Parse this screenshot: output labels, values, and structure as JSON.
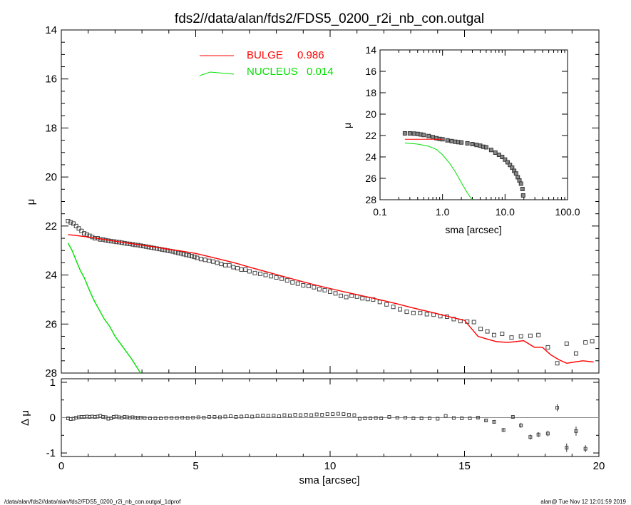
{
  "chart_data": [
    {
      "type": "scatter",
      "title": "fds2//data/alan/fds2/FDS5_0200_r2i_nb_con.outgal",
      "xlabel": "",
      "ylabel": "μ",
      "xlim": [
        0,
        20
      ],
      "ylim": [
        28,
        14
      ],
      "y_inverted": true,
      "y_ticks": [
        "14",
        "16",
        "18",
        "20",
        "22",
        "24",
        "26",
        "28"
      ],
      "legend": [
        {
          "label": "BULGE",
          "value": "0.986",
          "color": "#ff0000"
        },
        {
          "label": "NUCLEUS",
          "value": "0.014",
          "color": "#00e000"
        }
      ],
      "series": [
        {
          "name": "data",
          "marker": "square",
          "color": "#444444",
          "x": [
            0.25,
            0.35,
            0.45,
            0.55,
            0.65,
            0.75,
            0.85,
            0.95,
            1.05,
            1.15,
            1.25,
            1.35,
            1.45,
            1.55,
            1.65,
            1.75,
            1.85,
            1.95,
            2.05,
            2.15,
            2.25,
            2.35,
            2.45,
            2.55,
            2.65,
            2.75,
            2.85,
            2.95,
            3.05,
            3.15,
            3.25,
            3.35,
            3.45,
            3.55,
            3.65,
            3.75,
            3.85,
            3.95,
            4.05,
            4.15,
            4.25,
            4.35,
            4.45,
            4.55,
            4.65,
            4.75,
            4.85,
            4.95,
            5.05,
            5.2,
            5.35,
            5.5,
            5.65,
            5.8,
            5.95,
            6.1,
            6.25,
            6.4,
            6.55,
            6.7,
            6.85,
            7.0,
            7.2,
            7.4,
            7.6,
            7.8,
            8.0,
            8.2,
            8.4,
            8.6,
            8.8,
            9.0,
            9.2,
            9.4,
            9.6,
            9.8,
            10.0,
            10.2,
            10.4,
            10.6,
            10.8,
            11.0,
            11.2,
            11.4,
            11.6,
            11.85,
            12.1,
            12.35,
            12.6,
            12.85,
            13.1,
            13.35,
            13.6,
            13.85,
            14.1,
            14.35,
            14.6,
            14.85,
            15.1,
            15.35,
            15.6,
            15.85,
            16.1,
            16.4,
            16.75,
            17.1,
            17.45,
            17.75,
            18.1,
            18.45,
            18.8,
            19.15,
            19.5,
            19.75
          ],
          "y": [
            21.8,
            21.85,
            21.9,
            22.0,
            22.1,
            22.2,
            22.3,
            22.35,
            22.4,
            22.45,
            22.5,
            22.5,
            22.55,
            22.55,
            22.58,
            22.6,
            22.62,
            22.63,
            22.65,
            22.66,
            22.68,
            22.7,
            22.72,
            22.73,
            22.75,
            22.77,
            22.78,
            22.8,
            22.82,
            22.84,
            22.86,
            22.88,
            22.9,
            22.92,
            22.94,
            22.96,
            22.98,
            23.0,
            23.02,
            23.04,
            23.07,
            23.1,
            23.12,
            23.15,
            23.18,
            23.2,
            23.23,
            23.26,
            23.3,
            23.35,
            23.38,
            23.42,
            23.45,
            23.5,
            23.55,
            23.6,
            23.6,
            23.68,
            23.72,
            23.78,
            23.78,
            23.85,
            23.92,
            23.95,
            24.0,
            24.05,
            24.1,
            24.15,
            24.22,
            24.3,
            24.35,
            24.42,
            24.45,
            24.5,
            24.58,
            24.62,
            24.68,
            24.75,
            24.85,
            24.9,
            24.85,
            24.88,
            24.95,
            24.98,
            25.0,
            25.1,
            25.2,
            25.3,
            25.4,
            25.5,
            25.55,
            25.55,
            25.6,
            25.62,
            25.68,
            25.7,
            25.8,
            25.88,
            25.9,
            25.92,
            26.2,
            26.3,
            26.45,
            26.4,
            26.55,
            26.5,
            26.48,
            26.45,
            26.95,
            27.6,
            26.8,
            27.2,
            26.75,
            26.7
          ]
        },
        {
          "name": "BULGE",
          "marker": "line",
          "color": "#ff0000",
          "x": [
            0.25,
            0.5,
            1.0,
            1.5,
            2.0,
            2.5,
            3.0,
            3.5,
            4.0,
            4.5,
            5.0,
            5.5,
            6.0,
            6.5,
            7.0,
            7.5,
            8.0,
            8.5,
            9.0,
            9.5,
            10.0,
            10.5,
            11.0,
            11.5,
            12.0,
            12.5,
            13.0,
            13.5,
            14.0,
            14.5,
            15.0,
            15.5,
            15.8,
            16.2,
            16.6,
            16.9,
            17.2,
            17.6,
            17.9,
            18.2,
            18.5,
            18.8,
            19.1,
            19.4,
            19.8
          ],
          "y": [
            22.35,
            22.38,
            22.45,
            22.53,
            22.62,
            22.7,
            22.78,
            22.86,
            22.95,
            23.03,
            23.12,
            23.25,
            23.38,
            23.52,
            23.68,
            23.83,
            23.98,
            24.13,
            24.28,
            24.42,
            24.55,
            24.68,
            24.8,
            24.92,
            25.05,
            25.18,
            25.32,
            25.45,
            25.58,
            25.72,
            25.85,
            26.5,
            26.6,
            26.72,
            26.75,
            26.72,
            26.68,
            26.95,
            26.95,
            27.25,
            27.45,
            27.6,
            27.55,
            27.5,
            27.55
          ]
        },
        {
          "name": "NUCLEUS",
          "marker": "line",
          "color": "#00e000",
          "x": [
            0.25,
            0.4,
            0.55,
            0.7,
            0.85,
            1.0,
            1.2,
            1.4,
            1.6,
            1.8,
            2.0,
            2.2,
            2.4,
            2.6,
            2.8,
            2.95
          ],
          "y": [
            22.7,
            23.0,
            23.4,
            23.8,
            24.1,
            24.5,
            25.0,
            25.4,
            25.8,
            26.1,
            26.5,
            26.8,
            27.1,
            27.4,
            27.75,
            28.0
          ]
        }
      ]
    },
    {
      "type": "scatter",
      "xlabel": "sma [arcsec]",
      "ylabel": "μ",
      "x_scale": "log",
      "xlim": [
        0.1,
        100.0
      ],
      "ylim": [
        28,
        14
      ],
      "x_ticks": [
        "0.1",
        "1.0",
        "10.0",
        "100.0"
      ],
      "y_ticks": [
        "14",
        "16",
        "18",
        "20",
        "22",
        "24",
        "26",
        "28"
      ],
      "series": [
        {
          "name": "data",
          "marker": "square",
          "color": "#444444",
          "x": [
            0.25,
            0.3,
            0.35,
            0.4,
            0.45,
            0.5,
            0.6,
            0.7,
            0.8,
            0.9,
            1.0,
            1.2,
            1.4,
            1.6,
            1.8,
            2.0,
            2.5,
            3.0,
            3.5,
            4.0,
            4.5,
            5.0,
            6.0,
            7.0,
            8.0,
            9.0,
            10.0,
            11.0,
            12.0,
            13.0,
            14.0,
            15.0,
            16.0,
            17.0,
            18.0,
            19.0,
            19.5
          ],
          "y": [
            21.8,
            21.8,
            21.82,
            21.85,
            21.9,
            21.95,
            22.05,
            22.15,
            22.25,
            22.32,
            22.35,
            22.45,
            22.52,
            22.58,
            22.62,
            22.65,
            22.73,
            22.8,
            22.88,
            22.95,
            23.05,
            23.1,
            23.35,
            23.6,
            23.8,
            24.0,
            24.25,
            24.5,
            24.75,
            25.0,
            25.3,
            25.55,
            25.9,
            26.2,
            26.5,
            27.0,
            27.6
          ]
        },
        {
          "name": "BULGE",
          "marker": "line",
          "color": "#ff0000",
          "x": [
            0.25,
            1.0
          ],
          "y": [
            22.35,
            22.35
          ]
        },
        {
          "name": "NUCLEUS",
          "marker": "line",
          "color": "#00e000",
          "x": [
            0.25,
            0.4,
            0.6,
            0.8,
            1.0,
            1.3,
            1.6,
            2.0,
            2.4,
            2.8,
            3.0
          ],
          "y": [
            22.7,
            22.8,
            23.0,
            23.3,
            23.8,
            24.6,
            25.4,
            26.4,
            27.2,
            27.8,
            28.0
          ]
        }
      ]
    },
    {
      "type": "scatter",
      "xlabel": "sma [arcsec]",
      "ylabel": "Δ μ",
      "xlim": [
        0,
        20
      ],
      "ylim": [
        -1.1,
        1.1
      ],
      "x_ticks": [
        "0",
        "5",
        "10",
        "15",
        "20"
      ],
      "y_ticks": [
        "1",
        "0",
        "-1"
      ],
      "series": [
        {
          "name": "residual",
          "marker": "square",
          "color": "#444444",
          "x": [
            0.25,
            0.35,
            0.45,
            0.55,
            0.65,
            0.75,
            0.85,
            0.95,
            1.05,
            1.15,
            1.25,
            1.35,
            1.45,
            1.55,
            1.65,
            1.75,
            1.85,
            1.95,
            2.05,
            2.15,
            2.25,
            2.35,
            2.45,
            2.55,
            2.65,
            2.75,
            2.85,
            2.95,
            3.1,
            3.3,
            3.5,
            3.7,
            3.9,
            4.1,
            4.3,
            4.5,
            4.7,
            4.9,
            5.1,
            5.3,
            5.5,
            5.7,
            5.9,
            6.1,
            6.3,
            6.5,
            6.7,
            6.9,
            7.1,
            7.3,
            7.5,
            7.7,
            7.9,
            8.1,
            8.3,
            8.5,
            8.7,
            8.9,
            9.1,
            9.3,
            9.5,
            9.7,
            9.9,
            10.1,
            10.3,
            10.5,
            10.7,
            10.9,
            11.1,
            11.3,
            11.5,
            11.7,
            11.9,
            12.2,
            12.5,
            12.8,
            13.1,
            13.4,
            13.7,
            14.0,
            14.3,
            14.6,
            14.9,
            15.2,
            15.5,
            15.8,
            16.1,
            16.45,
            16.8,
            17.1,
            17.45,
            17.75,
            18.1,
            18.45,
            18.8,
            19.15,
            19.5
          ],
          "y": [
            -0.02,
            -0.04,
            -0.03,
            0.0,
            0.01,
            0.02,
            0.02,
            0.03,
            0.02,
            0.03,
            0.02,
            0.03,
            0.05,
            0.02,
            0.01,
            -0.03,
            -0.02,
            0.02,
            0.03,
            0.01,
            0.0,
            0.02,
            0.01,
            0.0,
            0.01,
            0.0,
            -0.01,
            0.0,
            -0.01,
            -0.02,
            -0.02,
            -0.02,
            -0.01,
            -0.01,
            -0.01,
            0.0,
            -0.01,
            0.0,
            0.01,
            0.0,
            0.02,
            0.02,
            0.01,
            0.03,
            0.04,
            0.02,
            0.03,
            0.04,
            0.03,
            0.05,
            0.06,
            0.05,
            0.06,
            0.04,
            0.07,
            0.06,
            0.08,
            0.07,
            0.08,
            0.07,
            0.09,
            0.08,
            0.1,
            0.1,
            0.11,
            0.1,
            0.08,
            0.07,
            -0.03,
            -0.02,
            -0.02,
            -0.01,
            -0.02,
            0.02,
            0.0,
            0.0,
            -0.02,
            -0.02,
            -0.02,
            -0.03,
            0.05,
            -0.01,
            -0.02,
            -0.02,
            0.0,
            -0.08,
            -0.12,
            -0.35,
            0.02,
            -0.22,
            -0.55,
            -0.48,
            -0.45,
            0.28,
            -0.85,
            -0.38,
            -0.88
          ],
          "err": [
            0.005,
            0.005,
            0.005,
            0.005,
            0.005,
            0.005,
            0.005,
            0.005,
            0.005,
            0.005,
            0.005,
            0.005,
            0.005,
            0.005,
            0.005,
            0.005,
            0.005,
            0.005,
            0.005,
            0.005,
            0.005,
            0.005,
            0.005,
            0.005,
            0.005,
            0.005,
            0.005,
            0.005,
            0.005,
            0.005,
            0.005,
            0.005,
            0.005,
            0.005,
            0.005,
            0.005,
            0.005,
            0.005,
            0.005,
            0.005,
            0.005,
            0.005,
            0.005,
            0.005,
            0.005,
            0.005,
            0.005,
            0.005,
            0.005,
            0.005,
            0.005,
            0.005,
            0.005,
            0.005,
            0.005,
            0.005,
            0.005,
            0.005,
            0.005,
            0.005,
            0.005,
            0.005,
            0.005,
            0.005,
            0.005,
            0.005,
            0.005,
            0.005,
            0.005,
            0.005,
            0.005,
            0.005,
            0.005,
            0.005,
            0.005,
            0.005,
            0.005,
            0.005,
            0.005,
            0.005,
            0.005,
            0.005,
            0.005,
            0.005,
            0.03,
            0.04,
            0.05,
            0.05,
            0.05,
            0.07,
            0.07,
            0.07,
            0.08,
            0.1,
            0.12,
            0.13,
            0.1
          ]
        }
      ]
    }
  ],
  "footer": {
    "left": "/data/alan/fds2//data/alan/fds2/FDS5_0200_r2i_nb_con.outgal_1dprof",
    "right": "alan@  Tue Nov 12 12:01:59 2019"
  }
}
